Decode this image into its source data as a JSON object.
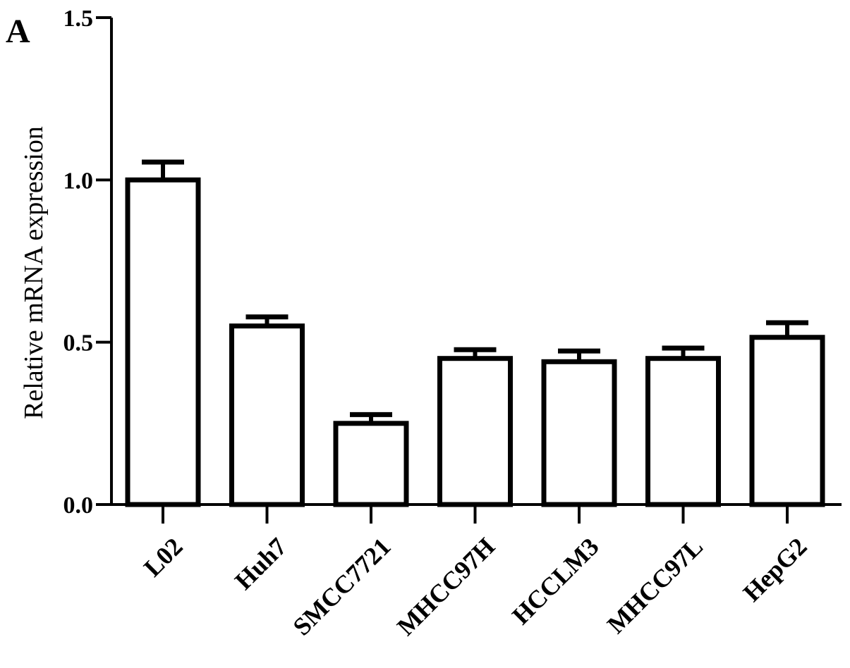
{
  "panel_label": "A",
  "chart_data": {
    "type": "bar",
    "categories": [
      "L02",
      "Huh7",
      "SMCC7721",
      "MHCC97H",
      "HCCLM3",
      "MHCC97L",
      "HepG2"
    ],
    "series": [
      {
        "values": [
          1.0,
          0.55,
          0.25,
          0.45,
          0.44,
          0.45,
          0.515
        ],
        "errors": [
          0.055,
          0.028,
          0.027,
          0.027,
          0.033,
          0.032,
          0.045
        ]
      }
    ],
    "ylabel": "Relative mRNA expression",
    "xlabel": "",
    "ylim": [
      0,
      1.5
    ],
    "yticks": [
      "0.0",
      "0.5",
      "1.0",
      "1.5"
    ],
    "ytick_values": [
      0,
      0.5,
      1.0,
      1.5
    ],
    "grid": false,
    "bar_fill": "#ffffff",
    "bar_stroke": "#000000"
  }
}
